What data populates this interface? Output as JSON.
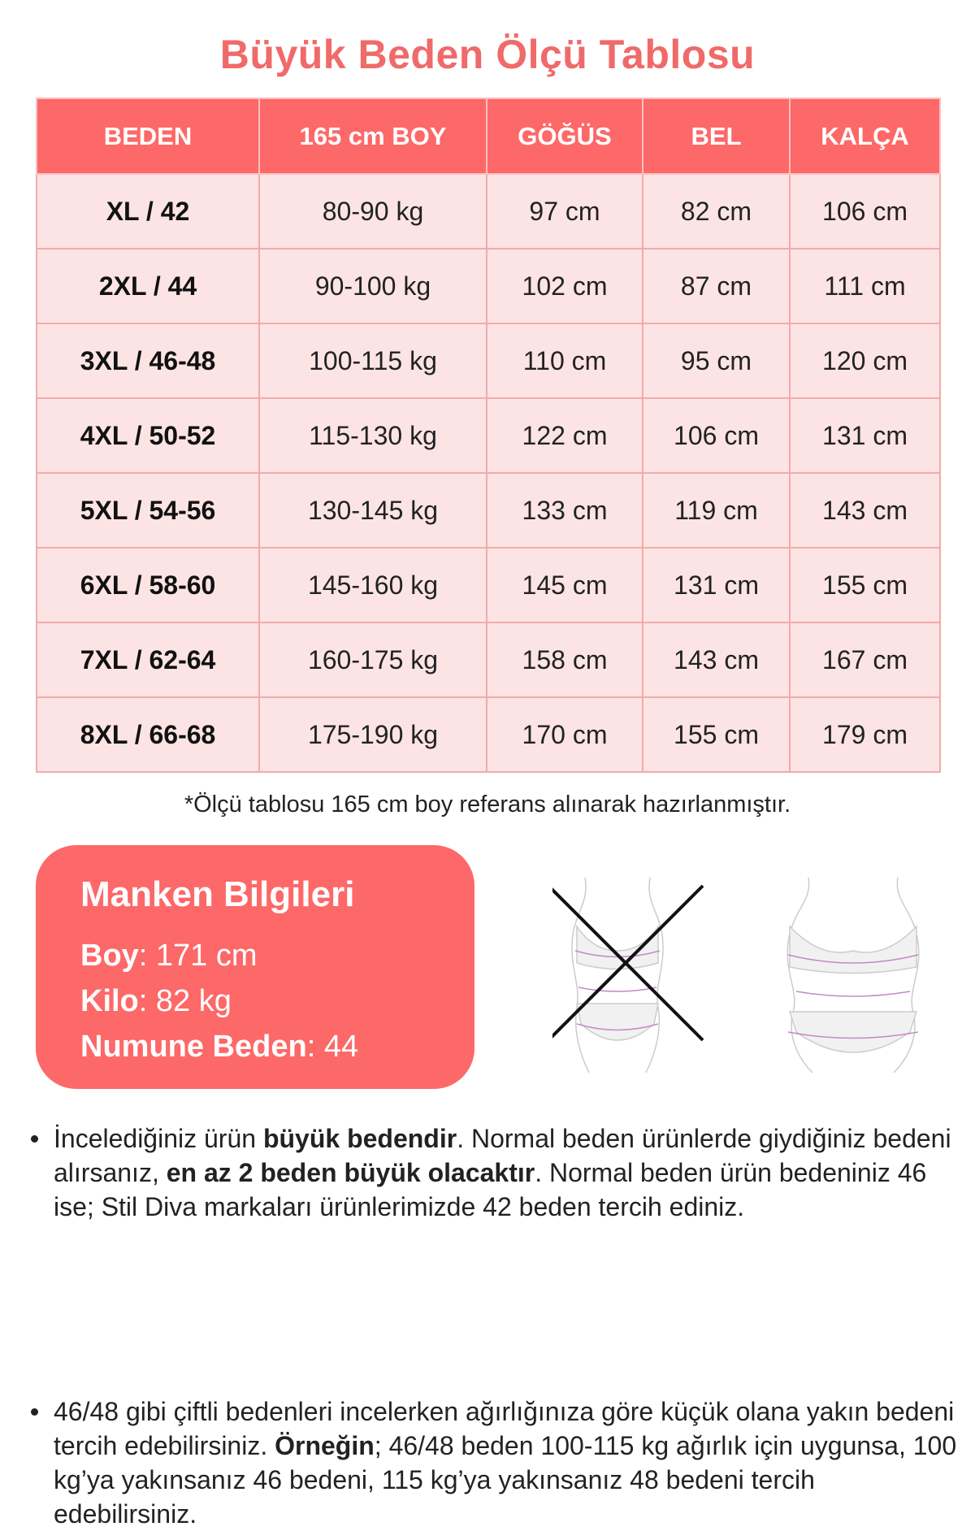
{
  "title": "Büyük Beden Ölçü Tablosu",
  "table": {
    "headers": [
      "BEDEN",
      "165 cm BOY",
      "GÖĞÜS",
      "BEL",
      "KALÇA"
    ],
    "rows": [
      [
        "XL / 42",
        "80-90 kg",
        "97 cm",
        "82 cm",
        "106 cm"
      ],
      [
        "2XL / 44",
        "90-100 kg",
        "102 cm",
        "87 cm",
        "111 cm"
      ],
      [
        "3XL / 46-48",
        "100-115 kg",
        "110 cm",
        "95 cm",
        "120 cm"
      ],
      [
        "4XL / 50-52",
        "115-130 kg",
        "122 cm",
        "106 cm",
        "131 cm"
      ],
      [
        "5XL / 54-56",
        "130-145 kg",
        "133 cm",
        "119 cm",
        "143 cm"
      ],
      [
        "6XL / 58-60",
        "145-160 kg",
        "145 cm",
        "131 cm",
        "155 cm"
      ],
      [
        "7XL / 62-64",
        "160-175 kg",
        "158 cm",
        "143 cm",
        "167 cm"
      ],
      [
        "8XL / 66-68",
        "175-190 kg",
        "170 cm",
        "155 cm",
        "179 cm"
      ]
    ]
  },
  "note": "*Ölçü tablosu 165 cm boy referans alınarak hazırlanmıştır.",
  "manken": {
    "title": "Manken Bilgileri",
    "boy_label": "Boy",
    "boy": ": 171 cm",
    "kilo_label": "Kilo",
    "kilo": ": 82 kg",
    "numune_label": "Numune Beden",
    "numune": ": 44"
  },
  "bullets": [
    {
      "p1": "İncelediğiniz ürün ",
      "b1": "büyük bedendir",
      "p2": ". Normal beden ürünlerde giydiğiniz bedeni alırsanız, ",
      "b2": "en az 2 beden büyük olacaktır",
      "p3": ". Normal beden ürün bedeniniz 46 ise; Stil Diva markaları ürünlerimizde 42 beden tercih ediniz."
    },
    {
      "p1": "46/48 gibi çiftli bedenleri incelerken ağırlığınıza göre küçük olana yakın bedeni tercih edebilirsiniz. ",
      "b1": "Örneğin",
      "p2": "; 46/48 beden 100-115 kg ağırlık için uygunsa, 100 kg’ya yakınsanız 46 bedeni, 115 kg’ya yakınsanız 48 bedeni tercih edebilirsiniz."
    }
  ],
  "colors": {
    "accent": "#fd6868",
    "row_bg": "#fde4e4",
    "title": "#f06a6a"
  }
}
